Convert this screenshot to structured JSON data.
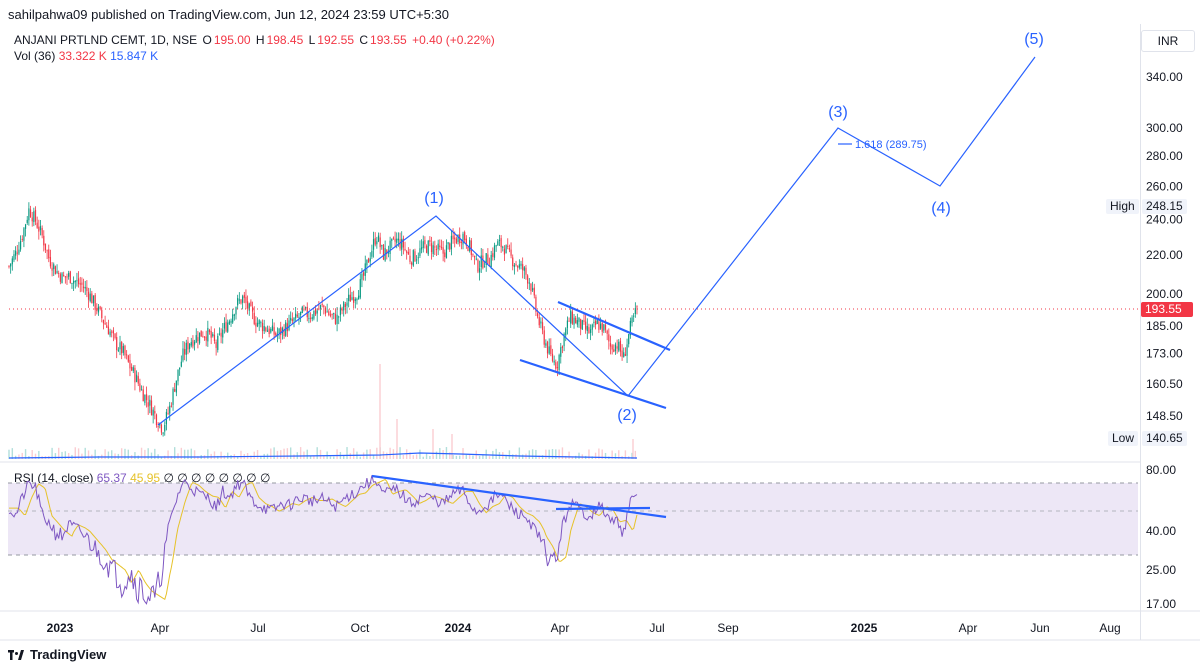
{
  "publisher": "sahilpahwa09 published on TradingView.com, Jun 12, 2024 23:59 UTC+5:30",
  "header": {
    "symbol": "ANJANI PRTLND CEMT, 1D, NSE",
    "open_label": "O",
    "open": "195.00",
    "high_label": "H",
    "high": "198.45",
    "low_label": "L",
    "low": "192.55",
    "close_label": "C",
    "close": "193.55",
    "change": "+0.40 (+0.22%)"
  },
  "volume": {
    "label": "Vol (36)",
    "value1": "33.322 K",
    "value2": "15.847 K"
  },
  "rsi": {
    "label": "RSI (14, close)",
    "value1": "65.37",
    "value2": "45.95",
    "placeholders": "∅ ∅ ∅ ∅ ∅ ∅ ∅ ∅"
  },
  "currency": "INR",
  "price_badges": {
    "high_label": "High",
    "high_value": "248.15",
    "low_label": "Low",
    "low_value": "140.65",
    "last_value": "193.55"
  },
  "footer": {
    "brand": "TradingView"
  },
  "colors": {
    "up": "#089981",
    "down": "#f23645",
    "drawing": "#2962ff",
    "rsi": "#7e57c2",
    "rsi_ma": "#e6c229",
    "rsi_band": "#ede7f6"
  },
  "chart_data": {
    "type": "candlestick",
    "symbol": "ANJANI PRTLND CEMT",
    "x_ticks": [
      "2023",
      "Apr",
      "Jul",
      "Oct",
      "2024",
      "Apr",
      "Jul",
      "Sep",
      "2025",
      "Apr",
      "Jun",
      "Aug"
    ],
    "y_ticks": [
      "340.00",
      "300.00",
      "280.00",
      "260.00",
      "240.00",
      "220.00",
      "200.00",
      "185.00",
      "173.00",
      "160.50",
      "148.50"
    ],
    "rsi_ticks": [
      "80.00",
      "40.00",
      "25.00",
      "17.00"
    ],
    "price_closes": [
      214,
      221,
      231,
      246,
      239,
      230,
      218,
      212,
      208,
      209,
      206,
      204,
      200,
      194,
      188,
      183,
      177,
      174,
      168,
      163,
      157,
      153,
      148,
      144,
      151,
      162,
      172,
      178,
      180,
      182,
      181,
      176,
      183,
      188,
      195,
      198,
      192,
      187,
      185,
      183,
      181,
      183,
      186,
      188,
      191,
      190,
      192,
      194,
      190,
      188,
      193,
      198,
      200,
      208,
      220,
      231,
      220,
      224,
      228,
      225,
      218,
      220,
      224,
      225,
      223,
      221,
      226,
      229,
      231,
      224,
      214,
      217,
      218,
      226,
      225,
      219,
      215,
      212,
      206,
      190,
      180,
      172,
      168,
      180,
      189,
      187,
      184,
      182,
      186,
      184,
      176,
      177,
      171,
      184,
      193
    ],
    "volume_spikes": [
      "Nov 2023",
      "Jan 2024",
      "Feb 2024",
      "Jun 2024"
    ],
    "rsi_values": [
      55,
      50,
      62,
      71,
      68,
      50,
      45,
      40,
      38,
      44,
      42,
      39,
      36,
      33,
      29,
      27,
      25,
      22,
      25,
      22,
      20,
      19,
      18,
      27,
      44,
      60,
      72,
      70,
      66,
      63,
      62,
      55,
      66,
      62,
      70,
      72,
      62,
      58,
      56,
      53,
      55,
      58,
      57,
      60,
      62,
      60,
      60,
      61,
      58,
      56,
      60,
      64,
      65,
      70,
      72,
      74,
      64,
      66,
      67,
      63,
      58,
      60,
      63,
      62,
      60,
      58,
      62,
      66,
      66,
      58,
      52,
      56,
      58,
      64,
      62,
      56,
      52,
      50,
      46,
      38,
      34,
      28,
      30,
      45,
      58,
      56,
      52,
      50,
      56,
      54,
      46,
      47,
      40,
      58,
      65
    ],
    "annotations": {
      "wave_labels": [
        "(1)",
        "(2)",
        "(3)",
        "(4)",
        "(5)"
      ],
      "fib_label": "1.618 (289.75)"
    }
  }
}
